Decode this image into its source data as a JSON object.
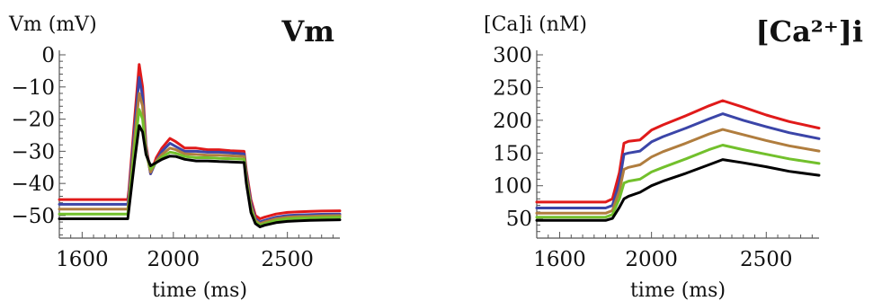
{
  "chart_data": [
    {
      "type": "line",
      "ylabel": "Vm (mV)",
      "corner_label": "Vm",
      "xlabel": "time (ms)",
      "xlim": [
        1500,
        2730
      ],
      "ylim": [
        -57,
        0
      ],
      "xticks": [
        1600,
        2000,
        2500
      ],
      "yticks": [
        0,
        -10,
        -20,
        -30,
        -40,
        -50
      ],
      "grid": false,
      "series": [
        {
          "color": "#e01a1a",
          "x": [
            1500,
            1800,
            1805,
            1830,
            1850,
            1865,
            1880,
            1900,
            1925,
            1950,
            1985,
            2010,
            2050,
            2100,
            2150,
            2200,
            2250,
            2310,
            2320,
            2340,
            2360,
            2380,
            2400,
            2450,
            2500,
            2550,
            2600,
            2650,
            2730
          ],
          "y": [
            -45,
            -45,
            -42,
            -20,
            -3,
            -10,
            -28,
            -37,
            -32,
            -29,
            -26,
            -27,
            -29,
            -29,
            -29.5,
            -29.5,
            -29.8,
            -30,
            -36,
            -45,
            -50,
            -51,
            -50.5,
            -49.5,
            -49,
            -48.8,
            -48.7,
            -48.6,
            -48.5
          ]
        },
        {
          "color": "#3b45a8",
          "x": [
            1500,
            1800,
            1805,
            1830,
            1850,
            1865,
            1880,
            1900,
            1925,
            1950,
            1985,
            2010,
            2050,
            2100,
            2150,
            2200,
            2250,
            2310,
            2320,
            2340,
            2360,
            2380,
            2400,
            2450,
            2500,
            2550,
            2600,
            2650,
            2730
          ],
          "y": [
            -46.5,
            -46.5,
            -43.5,
            -23,
            -7,
            -13,
            -29,
            -37,
            -33,
            -30,
            -27.5,
            -28.5,
            -30,
            -30,
            -30.3,
            -30.3,
            -30.5,
            -30.8,
            -37,
            -46,
            -51,
            -52,
            -51.5,
            -50.5,
            -50,
            -49.8,
            -49.7,
            -49.6,
            -49.5
          ]
        },
        {
          "color": "#b07d3e",
          "x": [
            1500,
            1800,
            1805,
            1830,
            1850,
            1865,
            1880,
            1900,
            1925,
            1950,
            1985,
            2010,
            2050,
            2100,
            2150,
            2200,
            2250,
            2310,
            2320,
            2340,
            2360,
            2380,
            2400,
            2450,
            2500,
            2550,
            2600,
            2650,
            2730
          ],
          "y": [
            -48,
            -48,
            -45,
            -26,
            -12,
            -16,
            -30,
            -36.5,
            -33,
            -31,
            -29,
            -29.5,
            -30.8,
            -31,
            -31.2,
            -31.2,
            -31.4,
            -31.6,
            -38,
            -47,
            -51.5,
            -52.5,
            -52,
            -51,
            -50.5,
            -50.3,
            -50.2,
            -50.1,
            -50
          ]
        },
        {
          "color": "#72c02c",
          "x": [
            1500,
            1800,
            1805,
            1830,
            1850,
            1865,
            1880,
            1900,
            1925,
            1950,
            1985,
            2010,
            2050,
            2100,
            2150,
            2200,
            2250,
            2310,
            2320,
            2340,
            2360,
            2380,
            2400,
            2450,
            2500,
            2550,
            2600,
            2650,
            2730
          ],
          "y": [
            -49.5,
            -49.5,
            -46.5,
            -29,
            -17,
            -20,
            -30.5,
            -35.5,
            -33.5,
            -31.8,
            -30.3,
            -30.6,
            -31.6,
            -32,
            -32,
            -32.2,
            -32.3,
            -32.5,
            -39,
            -48,
            -52,
            -53,
            -52.5,
            -51.5,
            -51,
            -50.8,
            -50.7,
            -50.6,
            -50.5
          ]
        },
        {
          "color": "#000000",
          "x": [
            1500,
            1800,
            1805,
            1830,
            1850,
            1865,
            1880,
            1900,
            1925,
            1950,
            1985,
            2010,
            2050,
            2100,
            2150,
            2200,
            2250,
            2310,
            2320,
            2340,
            2360,
            2380,
            2400,
            2450,
            2500,
            2550,
            2600,
            2650,
            2730
          ],
          "y": [
            -51,
            -51,
            -48,
            -33,
            -22,
            -24,
            -31,
            -34.5,
            -33.5,
            -32.5,
            -31.5,
            -31.6,
            -32.5,
            -33,
            -33,
            -33.2,
            -33.3,
            -33.5,
            -40,
            -49,
            -52.5,
            -53.5,
            -53,
            -52.2,
            -51.8,
            -51.6,
            -51.5,
            -51.4,
            -51.3
          ]
        }
      ]
    },
    {
      "type": "line",
      "ylabel": "[Ca]i (nM)",
      "corner_label": "[Ca²⁺]i",
      "xlabel": "time (ms)",
      "xlim": [
        1500,
        2730
      ],
      "ylim": [
        20,
        300
      ],
      "xticks": [
        1600,
        2000,
        2500
      ],
      "yticks": [
        300,
        250,
        200,
        150,
        100,
        50
      ],
      "grid": false,
      "series": [
        {
          "color": "#e01a1a",
          "x": [
            1500,
            1800,
            1830,
            1860,
            1880,
            1900,
            1950,
            2000,
            2050,
            2150,
            2250,
            2310,
            2400,
            2500,
            2600,
            2730
          ],
          "y": [
            75,
            75,
            80,
            120,
            165,
            168,
            170,
            185,
            193,
            207,
            222,
            230,
            220,
            208,
            198,
            188
          ]
        },
        {
          "color": "#3b45a8",
          "x": [
            1500,
            1800,
            1830,
            1860,
            1880,
            1900,
            1950,
            2000,
            2050,
            2150,
            2250,
            2310,
            2400,
            2500,
            2600,
            2730
          ],
          "y": [
            66,
            66,
            70,
            105,
            148,
            150,
            153,
            167,
            175,
            188,
            202,
            210,
            200,
            190,
            181,
            172
          ]
        },
        {
          "color": "#b07d3e",
          "x": [
            1500,
            1800,
            1830,
            1860,
            1880,
            1900,
            1950,
            2000,
            2050,
            2150,
            2250,
            2310,
            2400,
            2500,
            2600,
            2730
          ],
          "y": [
            58,
            58,
            62,
            92,
            125,
            128,
            132,
            144,
            152,
            165,
            179,
            186,
            178,
            169,
            161,
            153
          ]
        },
        {
          "color": "#72c02c",
          "x": [
            1500,
            1800,
            1830,
            1860,
            1880,
            1900,
            1950,
            2000,
            2050,
            2150,
            2250,
            2310,
            2400,
            2500,
            2600,
            2730
          ],
          "y": [
            52,
            52,
            56,
            80,
            104,
            107,
            110,
            121,
            128,
            141,
            155,
            162,
            155,
            148,
            141,
            134
          ]
        },
        {
          "color": "#000000",
          "x": [
            1500,
            1800,
            1830,
            1860,
            1880,
            1900,
            1950,
            2000,
            2050,
            2150,
            2250,
            2310,
            2400,
            2500,
            2600,
            2730
          ],
          "y": [
            47,
            47,
            50,
            67,
            80,
            84,
            90,
            100,
            107,
            119,
            132,
            140,
            135,
            129,
            122,
            116
          ]
        }
      ]
    }
  ]
}
